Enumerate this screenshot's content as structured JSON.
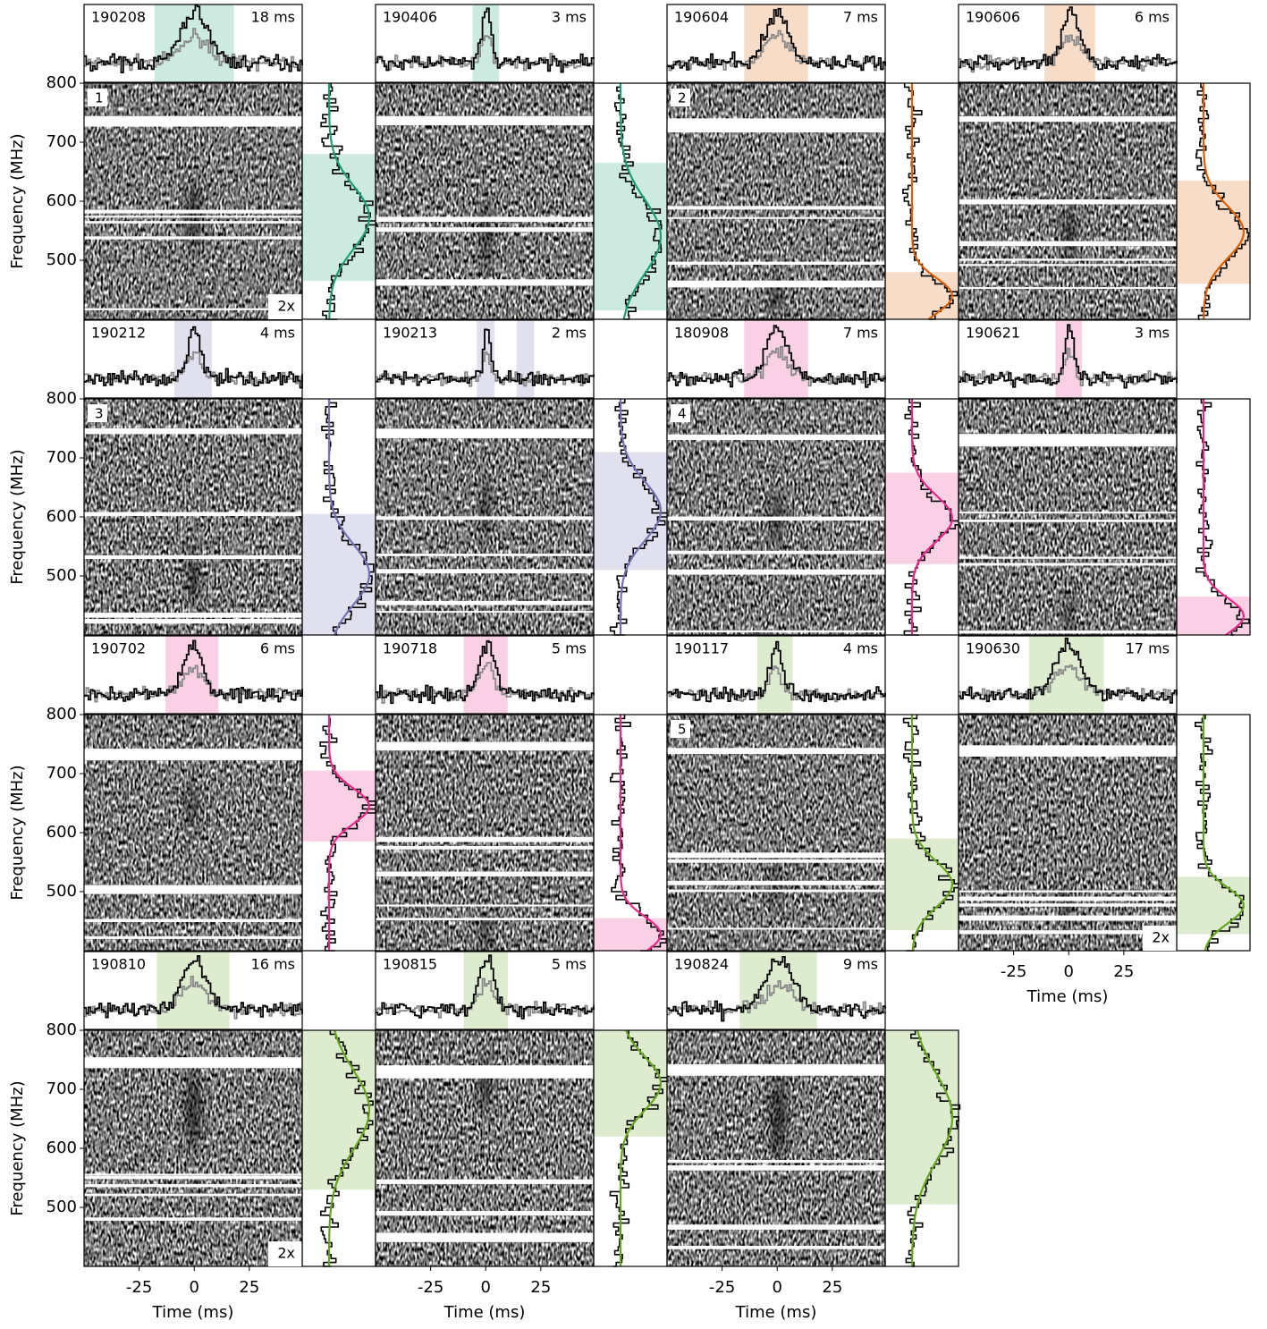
{
  "chart_data": {
    "type": "waterfall",
    "xlabel": "Time (ms)",
    "ylabel": "Frequency (MHz)",
    "xlim": [
      -50,
      49
    ],
    "ylim": [
      400,
      800
    ],
    "xticks": [
      -25,
      0,
      25
    ],
    "yticks": [
      500,
      600,
      700,
      800
    ],
    "panels": [
      {
        "id": "190208",
        "width": "18 ms",
        "label": "1",
        "scale": "2x",
        "color": "#1b9e77",
        "time_highlight": [
          [
            -18,
            18
          ]
        ],
        "freq_highlight": [
          465,
          680
        ]
      },
      {
        "id": "190406",
        "width": "3 ms",
        "color": "#1b9e77",
        "time_highlight": [
          [
            -6,
            6
          ]
        ],
        "freq_highlight": [
          415,
          665
        ]
      },
      {
        "id": "190604",
        "width": "7 ms",
        "label": "2",
        "color": "#d95f02",
        "time_highlight": [
          [
            -15,
            14
          ]
        ],
        "freq_highlight": [
          400,
          480
        ]
      },
      {
        "id": "190606",
        "width": "6 ms",
        "color": "#d95f02",
        "time_highlight": [
          [
            -11,
            12
          ]
        ],
        "freq_highlight": [
          460,
          635
        ]
      },
      {
        "id": "190212",
        "width": "4 ms",
        "label": "3",
        "color": "#7570b3",
        "time_highlight": [
          [
            -9,
            8
          ]
        ],
        "freq_highlight": [
          400,
          605
        ]
      },
      {
        "id": "190213",
        "width": "2 ms",
        "color": "#7570b3",
        "time_highlight": [
          [
            -4,
            4
          ],
          [
            14,
            22
          ]
        ],
        "freq_highlight": [
          510,
          710
        ]
      },
      {
        "id": "180908",
        "width": "7 ms",
        "label": "4",
        "color": "#e7298a",
        "time_highlight": [
          [
            -15,
            14
          ]
        ],
        "freq_highlight": [
          520,
          675
        ]
      },
      {
        "id": "190621",
        "width": "3 ms",
        "color": "#e7298a",
        "time_highlight": [
          [
            -6,
            6
          ]
        ],
        "freq_highlight": [
          400,
          465
        ]
      },
      {
        "id": "190702",
        "width": "6 ms",
        "color": "#e7298a",
        "time_highlight": [
          [
            -13,
            11
          ]
        ],
        "freq_highlight": [
          585,
          705
        ]
      },
      {
        "id": "190718",
        "width": "5 ms",
        "color": "#e7298a",
        "time_highlight": [
          [
            -10,
            10
          ]
        ],
        "freq_highlight": [
          400,
          455
        ]
      },
      {
        "id": "190117",
        "width": "4 ms",
        "label": "5",
        "color": "#66a61e",
        "time_highlight": [
          [
            -9,
            7
          ]
        ],
        "freq_highlight": [
          435,
          590
        ]
      },
      {
        "id": "190630",
        "width": "17 ms",
        "scale": "2x",
        "color": "#66a61e",
        "time_highlight": [
          [
            -18,
            16
          ]
        ],
        "freq_highlight": [
          428,
          525
        ]
      },
      {
        "id": "190810",
        "width": "16 ms",
        "scale": "2x",
        "color": "#66a61e",
        "time_highlight": [
          [
            -17,
            16
          ]
        ],
        "freq_highlight": [
          530,
          800
        ]
      },
      {
        "id": "190815",
        "width": "5 ms",
        "color": "#66a61e",
        "time_highlight": [
          [
            -10,
            10
          ]
        ],
        "freq_highlight": [
          620,
          800
        ]
      },
      {
        "id": "190824",
        "width": "9 ms",
        "color": "#66a61e",
        "time_highlight": [
          [
            -17,
            18
          ]
        ],
        "freq_highlight": [
          505,
          800
        ]
      }
    ]
  }
}
